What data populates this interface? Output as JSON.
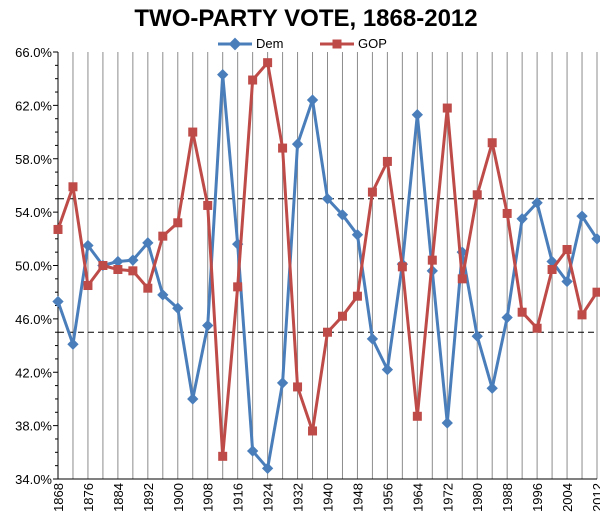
{
  "chart_data": {
    "type": "line",
    "title": "TWO-PARTY VOTE, 1868-2012",
    "xlabel": "",
    "ylabel": "",
    "x": [
      1868,
      1872,
      1876,
      1880,
      1884,
      1888,
      1892,
      1896,
      1900,
      1904,
      1908,
      1912,
      1916,
      1920,
      1924,
      1928,
      1932,
      1936,
      1940,
      1944,
      1948,
      1952,
      1956,
      1960,
      1964,
      1968,
      1972,
      1976,
      1980,
      1984,
      1988,
      1992,
      1996,
      2000,
      2004,
      2008,
      2012
    ],
    "x_tick_labels": [
      "1868",
      "1876",
      "1884",
      "1892",
      "1900",
      "1908",
      "1916",
      "1924",
      "1932",
      "1940",
      "1948",
      "1956",
      "1964",
      "1972",
      "1980",
      "1988",
      "1996",
      "2004",
      "2012"
    ],
    "ylim": [
      34.0,
      66.0
    ],
    "y_tick_labels": [
      "34.0%",
      "38.0%",
      "42.0%",
      "46.0%",
      "50.0%",
      "54.0%",
      "58.0%",
      "62.0%",
      "66.0%"
    ],
    "reference_lines": [
      45.0,
      55.0
    ],
    "grid": "vertical",
    "legend_position": "top",
    "series": [
      {
        "name": "Dem",
        "color": "#4a7ebb",
        "marker": "diamond",
        "values": [
          47.3,
          44.1,
          51.5,
          50.0,
          50.3,
          50.4,
          51.7,
          47.8,
          46.8,
          40.0,
          45.5,
          64.3,
          51.6,
          36.1,
          34.8,
          41.2,
          59.1,
          62.4,
          55.0,
          53.8,
          52.3,
          44.5,
          42.2,
          50.1,
          61.3,
          49.6,
          38.2,
          51.0,
          44.7,
          40.8,
          46.1,
          53.5,
          54.7,
          50.3,
          48.8,
          53.7,
          52.0
        ]
      },
      {
        "name": "GOP",
        "color": "#be4b48",
        "marker": "square",
        "values": [
          52.7,
          55.9,
          48.5,
          50.0,
          49.7,
          49.6,
          48.3,
          52.2,
          53.2,
          60.0,
          54.5,
          35.7,
          48.4,
          63.9,
          65.2,
          58.8,
          40.9,
          37.6,
          45.0,
          46.2,
          47.7,
          55.5,
          57.8,
          49.9,
          38.7,
          50.4,
          61.8,
          49.0,
          55.3,
          59.2,
          53.9,
          46.5,
          45.3,
          49.7,
          51.2,
          46.3,
          48.0
        ]
      }
    ]
  }
}
